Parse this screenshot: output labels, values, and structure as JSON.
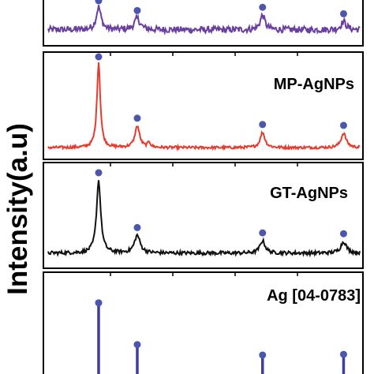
{
  "chart_data": {
    "type": "line",
    "ylabel": "Intensity(a.u)",
    "xlabel": "",
    "x_range": [
      30,
      80
    ],
    "colors": {
      "top": "#6a3fa0",
      "mp": "#e8392c",
      "gt": "#111111",
      "ref": "#3b3f9a",
      "marker": "#4a56b0"
    },
    "peaks_2theta": [
      38.1,
      44.3,
      64.4,
      77.4
    ],
    "panels": [
      {
        "id": "top",
        "label": "",
        "color": "#6a3fa0",
        "baseline": 0.3,
        "noise": 0.1,
        "peaks": [
          {
            "x": 38.1,
            "h": 0.7,
            "w": 0.45
          },
          {
            "x": 44.3,
            "h": 0.35,
            "w": 0.55
          },
          {
            "x": 64.4,
            "h": 0.45,
            "w": 0.45
          },
          {
            "x": 77.4,
            "h": 0.25,
            "w": 0.5
          }
        ],
        "markers": [
          38.1,
          44.3,
          64.4,
          77.4
        ]
      },
      {
        "id": "mp",
        "label": "MP-AgNPs",
        "color": "#e8392c",
        "baseline": 0.06,
        "noise": 0.015,
        "peaks": [
          {
            "x": 38.1,
            "h": 0.95,
            "w": 0.32
          },
          {
            "x": 44.3,
            "h": 0.24,
            "w": 0.45
          },
          {
            "x": 46.2,
            "h": 0.06,
            "w": 0.25
          },
          {
            "x": 64.4,
            "h": 0.17,
            "w": 0.45
          },
          {
            "x": 77.4,
            "h": 0.16,
            "w": 0.5
          }
        ],
        "markers": [
          38.1,
          44.3,
          64.4,
          77.4
        ]
      },
      {
        "id": "gt",
        "label": "GT-AgNPs",
        "color": "#111111",
        "baseline": 0.1,
        "noise": 0.02,
        "peaks": [
          {
            "x": 38.1,
            "h": 0.82,
            "w": 0.4
          },
          {
            "x": 44.3,
            "h": 0.2,
            "w": 0.55
          },
          {
            "x": 64.4,
            "h": 0.14,
            "w": 0.5
          },
          {
            "x": 77.4,
            "h": 0.13,
            "w": 0.55
          }
        ],
        "markers": [
          38.1,
          44.3,
          64.4,
          77.4
        ]
      },
      {
        "id": "ref",
        "label": "Ag [04-0783]",
        "color": "#3b3f9a",
        "type": "stick",
        "sticks": [
          {
            "x": 38.1,
            "h": 100
          },
          {
            "x": 44.3,
            "h": 40
          },
          {
            "x": 64.4,
            "h": 25
          },
          {
            "x": 77.4,
            "h": 26
          }
        ]
      }
    ]
  }
}
